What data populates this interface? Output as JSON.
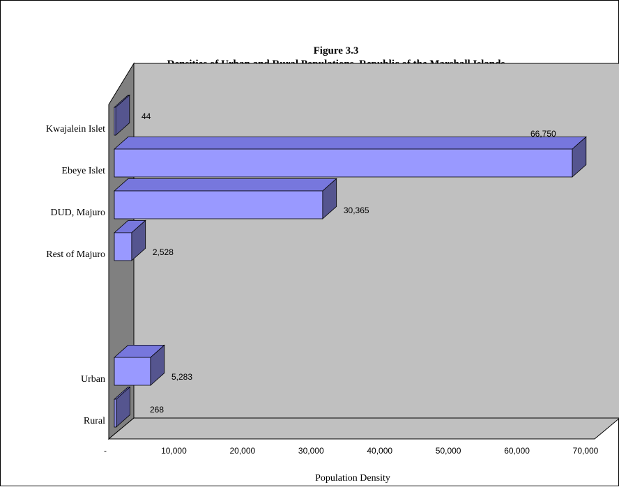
{
  "chart_data": {
    "type": "bar",
    "orientation": "horizontal",
    "three_d": true,
    "title": "Figure 3.3",
    "subtitle": "Densities of Urban and Rural Populations, Republic of the Marshall Islands",
    "xlabel": "Population Density",
    "ylabel": "",
    "xlim": [
      0,
      70000
    ],
    "x_ticks": [
      "-",
      "10,000",
      "20,000",
      "30,000",
      "40,000",
      "50,000",
      "60,000",
      "70,000"
    ],
    "grid": false,
    "legend": "none",
    "categories": [
      "Kwajalein Islet",
      "Ebeye Islet",
      "DUD, Majuro",
      "Rest of Majuro",
      "",
      "Urban",
      "Rural"
    ],
    "values": [
      44,
      66750,
      30365,
      2528,
      null,
      5283,
      268
    ],
    "data_labels": [
      "44",
      "66,750",
      "30,365",
      "2,528",
      "",
      "5,283",
      "268"
    ],
    "colors": {
      "bar_front": "#9999ff",
      "bar_top": "#7777dd",
      "bar_side": "#55558f",
      "back_wall": "#c0c0c0",
      "side_wall": "#808080",
      "floor": "#c0c0c0"
    }
  }
}
